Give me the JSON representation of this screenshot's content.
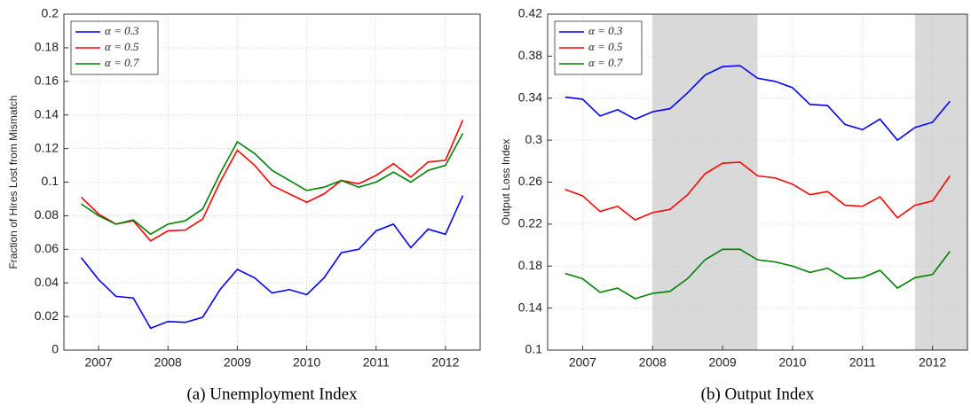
{
  "chart_data": [
    {
      "type": "line",
      "caption": "(a)  Unemployment Index",
      "ylabel": "Fraction of Hires Lost from Mismatch",
      "x": [
        2006.75,
        2007,
        2007.25,
        2007.5,
        2007.75,
        2008,
        2008.25,
        2008.5,
        2008.75,
        2009,
        2009.25,
        2009.5,
        2009.75,
        2010,
        2010.25,
        2010.5,
        2010.75,
        2011,
        2011.25,
        2011.5,
        2011.75,
        2012,
        2012.25
      ],
      "xlim": [
        2006.5,
        2012.5
      ],
      "xticks": [
        2007,
        2008,
        2009,
        2010,
        2011,
        2012
      ],
      "ylim": [
        0,
        0.2
      ],
      "yticks": [
        0,
        0.02,
        0.04,
        0.06,
        0.08,
        0.1,
        0.12,
        0.14,
        0.16,
        0.18,
        0.2
      ],
      "grid": true,
      "legend": "upper left",
      "series": [
        {
          "name": "α = 0.3",
          "color": "#0000ff",
          "values": [
            0.055,
            0.042,
            0.032,
            0.031,
            0.013,
            0.017,
            0.0165,
            0.0195,
            0.036,
            0.048,
            0.043,
            0.034,
            0.036,
            0.033,
            0.043,
            0.058,
            0.06,
            0.071,
            0.075,
            0.061,
            0.072,
            0.069,
            0.092
          ]
        },
        {
          "name": "α = 0.5",
          "color": "#ff0000",
          "values": [
            0.091,
            0.081,
            0.075,
            0.077,
            0.065,
            0.071,
            0.0715,
            0.078,
            0.1,
            0.119,
            0.11,
            0.098,
            0.093,
            0.088,
            0.093,
            0.101,
            0.099,
            0.104,
            0.111,
            0.103,
            0.112,
            0.113,
            0.137
          ]
        },
        {
          "name": "α = 0.7",
          "color": "#008000",
          "values": [
            0.087,
            0.08,
            0.075,
            0.0775,
            0.069,
            0.075,
            0.077,
            0.084,
            0.105,
            0.124,
            0.117,
            0.107,
            0.101,
            0.095,
            0.097,
            0.101,
            0.097,
            0.1,
            0.106,
            0.1,
            0.107,
            0.11,
            0.129
          ]
        }
      ]
    },
    {
      "type": "line",
      "caption": "(b)  Output Index",
      "ylabel": "Output Loss Index",
      "x": [
        2006.75,
        2007,
        2007.25,
        2007.5,
        2007.75,
        2008,
        2008.25,
        2008.5,
        2008.75,
        2009,
        2009.25,
        2009.5,
        2009.75,
        2010,
        2010.25,
        2010.5,
        2010.75,
        2011,
        2011.25,
        2011.5,
        2011.75,
        2012,
        2012.25
      ],
      "xlim": [
        2006.5,
        2012.5
      ],
      "xticks": [
        2007,
        2008,
        2009,
        2010,
        2011,
        2012
      ],
      "ylim": [
        0.1,
        0.42
      ],
      "yticks": [
        0.1,
        0.14,
        0.18,
        0.22,
        0.26,
        0.3,
        0.34,
        0.38,
        0.42
      ],
      "grid": true,
      "legend": "upper left",
      "shaded": [
        [
          2008,
          2009.5
        ],
        [
          2011.75,
          2012.5
        ]
      ],
      "series": [
        {
          "name": "α = 0.3",
          "color": "#0000ff",
          "values": [
            0.341,
            0.339,
            0.323,
            0.329,
            0.32,
            0.327,
            0.33,
            0.345,
            0.362,
            0.37,
            0.371,
            0.359,
            0.356,
            0.35,
            0.334,
            0.333,
            0.315,
            0.31,
            0.32,
            0.3,
            0.312,
            0.317,
            0.337
          ]
        },
        {
          "name": "α = 0.5",
          "color": "#ff0000",
          "values": [
            0.253,
            0.247,
            0.232,
            0.237,
            0.224,
            0.231,
            0.234,
            0.248,
            0.268,
            0.278,
            0.279,
            0.266,
            0.264,
            0.258,
            0.248,
            0.251,
            0.238,
            0.237,
            0.246,
            0.226,
            0.238,
            0.242,
            0.266
          ]
        },
        {
          "name": "α = 0.7",
          "color": "#008000",
          "values": [
            0.173,
            0.168,
            0.155,
            0.159,
            0.149,
            0.154,
            0.156,
            0.168,
            0.186,
            0.196,
            0.196,
            0.186,
            0.184,
            0.18,
            0.174,
            0.178,
            0.168,
            0.169,
            0.176,
            0.159,
            0.169,
            0.172,
            0.194
          ]
        }
      ]
    }
  ]
}
